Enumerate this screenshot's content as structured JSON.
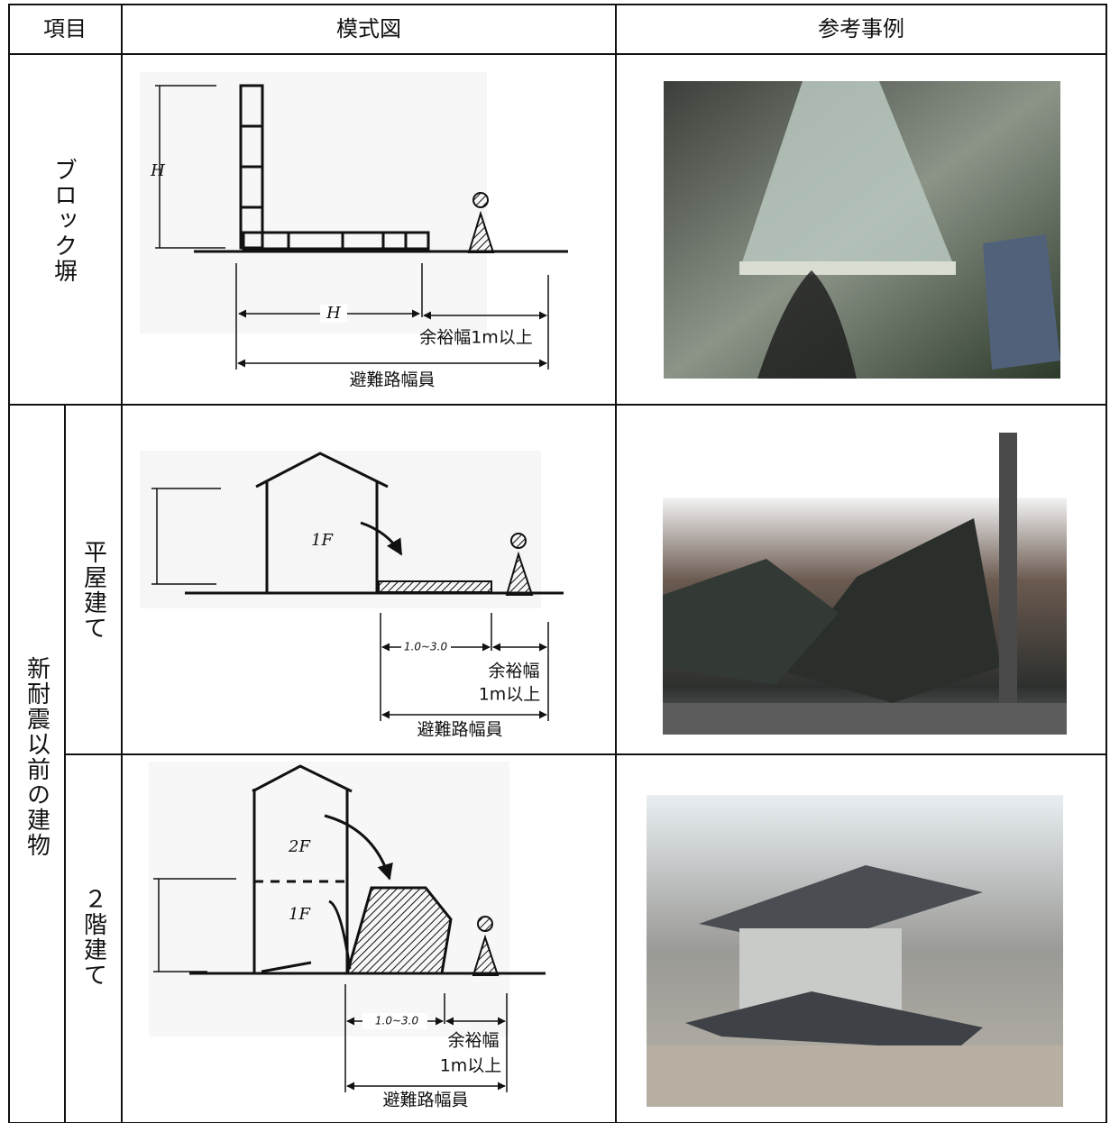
{
  "header": {
    "item": "項目",
    "diagram": "模式図",
    "example": "参考事例"
  },
  "block_wall": {
    "label": "ブロック塀",
    "height_label": "H",
    "width_label": "H",
    "margin": "余裕幅1m以上",
    "road": "避難路幅員"
  },
  "old_buildings": {
    "label": "新耐震以前の建物",
    "one_story": {
      "label": "平屋建て",
      "floor": "1F",
      "fall_range": "1.0~3.0",
      "margin": [
        "余裕幅",
        "1m以上"
      ],
      "road": "避難路幅員"
    },
    "two_story": {
      "label": "２階建て",
      "floor_upper": "2F",
      "floor_lower": "1F",
      "fall_range": "1.0~3.0",
      "margin": [
        "余裕幅",
        "1m以上"
      ],
      "road": "避難路幅員"
    }
  }
}
